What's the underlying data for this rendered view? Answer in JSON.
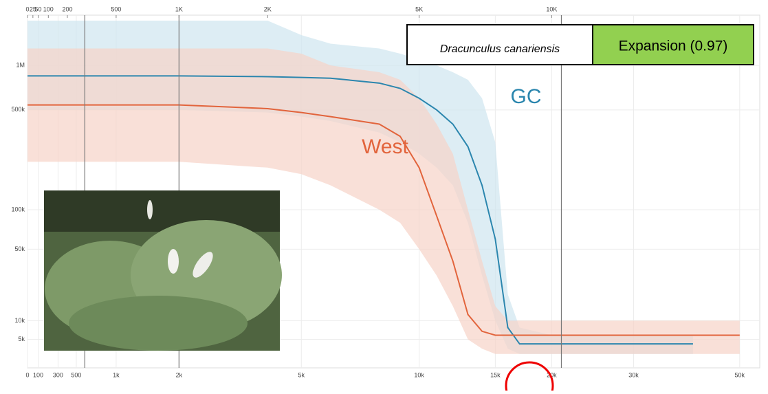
{
  "chart_data": {
    "type": "line",
    "x": [
      0,
      1000,
      2000,
      4000,
      5000,
      6000,
      8000,
      9000,
      10000,
      11000,
      12000,
      13000,
      14000,
      15000,
      16000,
      17000,
      20000,
      30000,
      40000,
      50000
    ],
    "series": [
      {
        "name": "GC",
        "color": "#2b86ae",
        "band_color": "#cfe6f0",
        "values": [
          850000,
          850000,
          850000,
          840000,
          830000,
          820000,
          760000,
          700000,
          600000,
          500000,
          400000,
          280000,
          150000,
          60000,
          8000,
          4000,
          4000,
          4000,
          4000,
          null
        ],
        "upper": [
          2000000,
          2000000,
          2000000,
          2000000,
          1600000,
          1400000,
          1300000,
          1200000,
          1100000,
          1000000,
          900000,
          800000,
          600000,
          300000,
          20000,
          8000,
          6000,
          6000,
          6000,
          null
        ],
        "lower": [
          500000,
          500000,
          500000,
          480000,
          450000,
          420000,
          350000,
          300000,
          250000,
          200000,
          150000,
          80000,
          30000,
          10000,
          3000,
          2000,
          2000,
          2000,
          2000,
          null
        ]
      },
      {
        "name": "West",
        "color": "#e2643c",
        "band_color": "#f7d3c8",
        "values": [
          540000,
          540000,
          540000,
          510000,
          480000,
          450000,
          400000,
          330000,
          200000,
          90000,
          40000,
          12000,
          7000,
          6000,
          6000,
          6000,
          6000,
          6000,
          6000,
          6000
        ],
        "upper": [
          1300000,
          1300000,
          1300000,
          1300000,
          1200000,
          1000000,
          900000,
          800000,
          600000,
          400000,
          250000,
          100000,
          40000,
          15000,
          10000,
          10000,
          10000,
          10000,
          10000,
          10000
        ],
        "lower": [
          220000,
          220000,
          220000,
          200000,
          180000,
          150000,
          100000,
          80000,
          50000,
          30000,
          15000,
          5000,
          3000,
          2000,
          2000,
          2000,
          2000,
          2000,
          2000,
          2000
        ]
      }
    ],
    "xlim": [
      0,
      55000
    ],
    "xticks": [
      0,
      100,
      300,
      500,
      {
        "value": 1000,
        "label": "1k"
      },
      {
        "value": 2000,
        "label": "2k"
      },
      {
        "value": 5000,
        "label": "5k"
      },
      {
        "value": 10000,
        "label": "10k"
      },
      {
        "value": 15000,
        "label": "15k"
      },
      {
        "value": 20000,
        "label": "20k"
      },
      {
        "value": 30000,
        "label": "30k"
      },
      {
        "value": 50000,
        "label": "50k"
      }
    ],
    "x2lim": [
      0,
      27500
    ],
    "x2ticks": [
      0,
      25,
      50,
      100,
      200,
      500,
      {
        "value": 1000,
        "label": "1K"
      },
      {
        "value": 2000,
        "label": "2K"
      },
      {
        "value": 5000,
        "label": "5K"
      },
      {
        "value": 10000,
        "label": "10K"
      }
    ],
    "ylim": [
      0,
      2000000
    ],
    "yticks": [
      {
        "value": 5000,
        "label": "5k"
      },
      {
        "value": 10000,
        "label": "10k"
      },
      {
        "value": 50000,
        "label": "50k"
      },
      {
        "value": 100000,
        "label": "100k"
      },
      {
        "value": 500000,
        "label": "500k"
      },
      {
        "value": 1000000,
        "label": "1M"
      }
    ],
    "reference_lines": [
      600,
      2000,
      21000
    ],
    "grid": true,
    "annotations": [
      "GC",
      "West"
    ],
    "species": "Dracunculus canariensis",
    "result": "Expansion (0.97)"
  }
}
